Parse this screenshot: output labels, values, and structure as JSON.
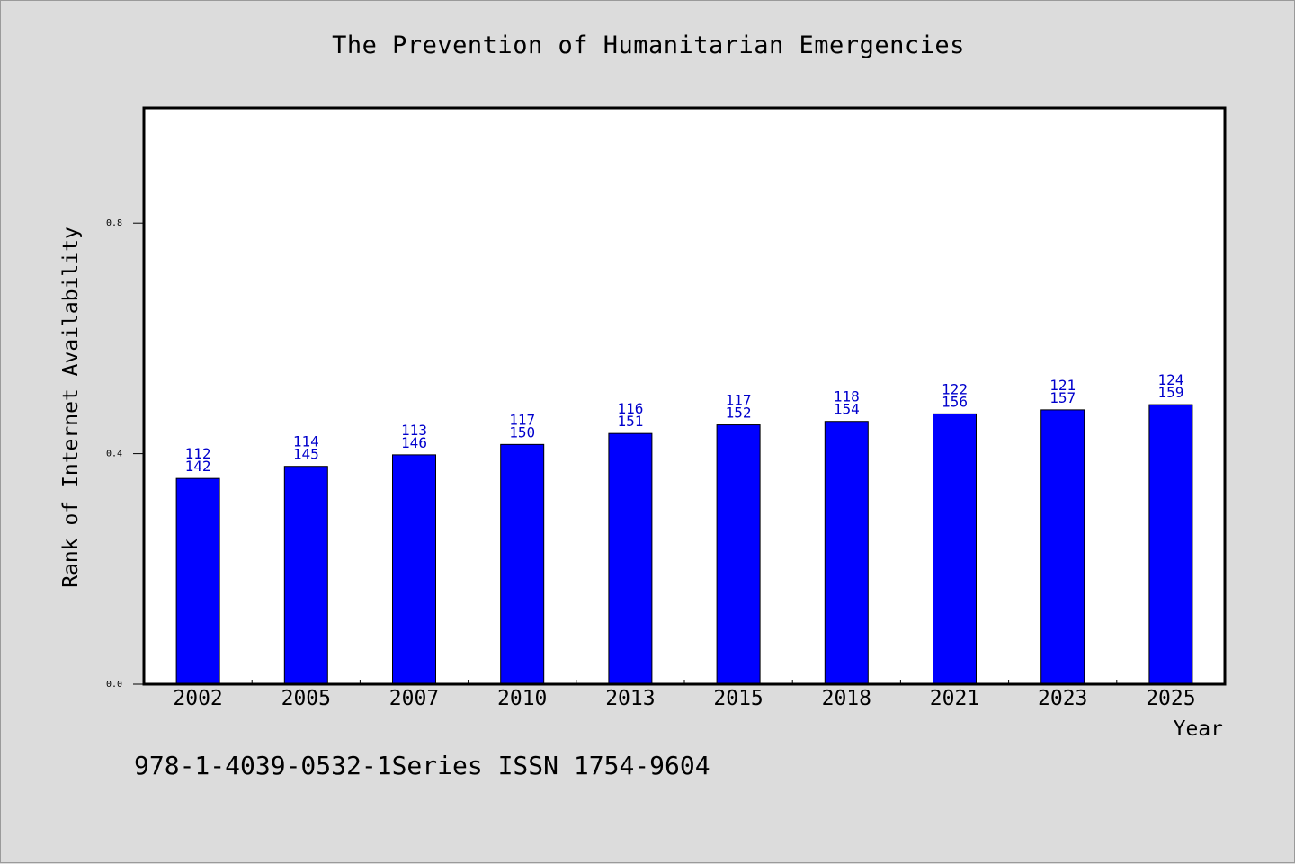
{
  "title": "The Prevention of Humanitarian Emergencies",
  "footer": "978-1-4039-0532-1Series ISSN 1754-9604",
  "colors": {
    "bar": "#0000ff",
    "label": "#0000cc",
    "background": "#dcdcdc",
    "plot": "#ffffff"
  },
  "chart_data": {
    "type": "bar",
    "title": "The Prevention of Humanitarian Emergencies",
    "xlabel": "Year",
    "ylabel": "Rank of Internet Availability",
    "ylim": [
      0,
      1.0
    ],
    "yticks": [
      "0.0",
      "0.4",
      "0.8"
    ],
    "grid": false,
    "categories": [
      "2002",
      "2005",
      "2007",
      "2010",
      "2013",
      "2015",
      "2018",
      "2021",
      "2023",
      "2025"
    ],
    "values": [
      0.357,
      0.378,
      0.398,
      0.416,
      0.435,
      0.45,
      0.456,
      0.469,
      0.476,
      0.485
    ],
    "data_labels": [
      [
        "112",
        "142"
      ],
      [
        "114",
        "145"
      ],
      [
        "113",
        "146"
      ],
      [
        "117",
        "150"
      ],
      [
        "116",
        "151"
      ],
      [
        "117",
        "152"
      ],
      [
        "118",
        "154"
      ],
      [
        "122",
        "156"
      ],
      [
        "121",
        "157"
      ],
      [
        "124",
        "159"
      ]
    ]
  }
}
